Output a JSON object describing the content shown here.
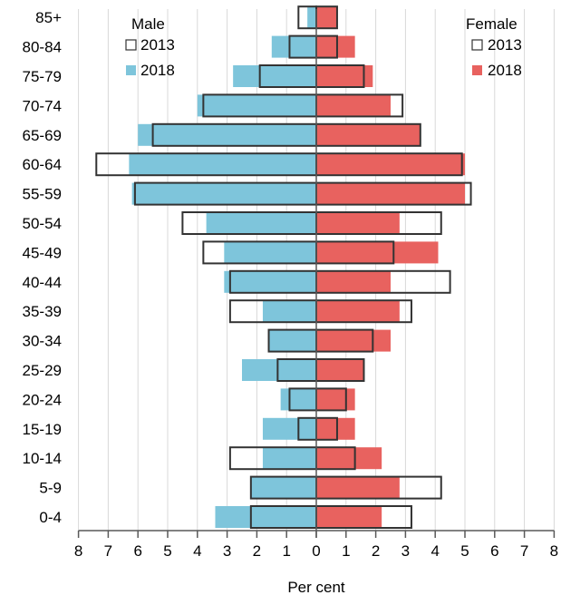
{
  "chart_data": {
    "type": "bar",
    "subtype": "population-pyramid",
    "xlabel": "Per cent",
    "xlim": [
      -8,
      8
    ],
    "x_ticks": [
      "8",
      "7",
      "6",
      "5",
      "4",
      "3",
      "2",
      "1",
      "0",
      "1",
      "2",
      "3",
      "4",
      "5",
      "6",
      "7",
      "8"
    ],
    "grid": true,
    "categories": [
      "0-4",
      "5-9",
      "10-14",
      "15-19",
      "20-24",
      "25-29",
      "30-34",
      "35-39",
      "40-44",
      "45-49",
      "50-54",
      "55-59",
      "60-64",
      "65-69",
      "70-74",
      "75-79",
      "80-84",
      "85+"
    ],
    "male": {
      "title": "Male",
      "series": [
        {
          "name": "2013",
          "style": "outline",
          "values": [
            2.2,
            2.2,
            2.9,
            0.6,
            0.9,
            1.3,
            1.6,
            2.9,
            2.9,
            3.8,
            4.5,
            6.1,
            7.4,
            5.5,
            3.8,
            1.9,
            0.9,
            0.6
          ]
        },
        {
          "name": "2018",
          "style": "fill",
          "values": [
            3.4,
            2.2,
            1.8,
            1.8,
            1.2,
            2.5,
            1.6,
            1.8,
            3.1,
            3.1,
            3.7,
            6.2,
            6.3,
            6.0,
            4.0,
            2.8,
            1.5,
            0.3
          ]
        }
      ]
    },
    "female": {
      "title": "Female",
      "series": [
        {
          "name": "2013",
          "style": "outline",
          "values": [
            3.2,
            4.2,
            1.3,
            0.7,
            1.0,
            1.6,
            1.9,
            3.2,
            4.5,
            2.6,
            4.2,
            5.2,
            4.9,
            3.5,
            2.9,
            1.6,
            0.7,
            0.7
          ]
        },
        {
          "name": "2018",
          "style": "fill",
          "values": [
            2.2,
            2.8,
            2.2,
            1.3,
            1.3,
            1.6,
            2.5,
            2.8,
            2.5,
            4.1,
            2.8,
            5.0,
            5.0,
            3.5,
            2.5,
            1.9,
            1.3,
            0.7
          ]
        }
      ]
    },
    "colors": {
      "male_2018": "#7ec5db",
      "female_2018": "#e8625f",
      "outline": "#333333",
      "grid": "#d9d9d9",
      "axis": "#595959"
    }
  }
}
